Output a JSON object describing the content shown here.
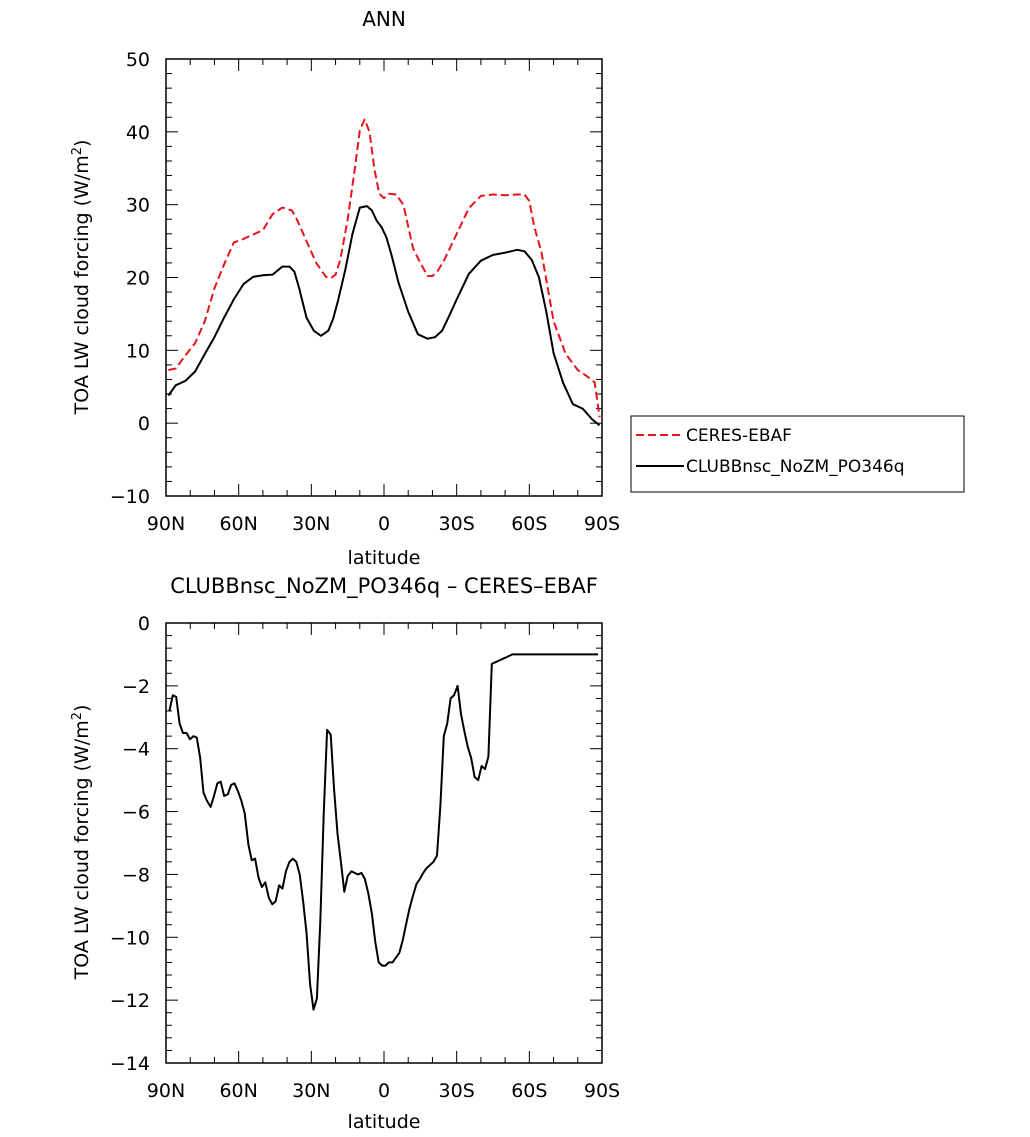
{
  "colors": {
    "observation": "#e8141b",
    "model": "#000000",
    "axis": "#000000",
    "background": "#ffffff"
  },
  "chart_data": [
    {
      "type": "line",
      "title": "ANN",
      "xlabel": "latitude",
      "ylabel": "TOA LW cloud forcing (W/m²)",
      "ylabel_main": "TOA LW cloud forcing (W/m",
      "ylabel_sup": "2",
      "ylabel_end": ")",
      "xlim": [
        90,
        -90
      ],
      "ylim": [
        -10,
        50
      ],
      "yticks": [
        -10,
        0,
        10,
        20,
        30,
        40,
        50
      ],
      "xticks": [
        {
          "value": 90,
          "label": "90N"
        },
        {
          "value": 60,
          "label": "60N"
        },
        {
          "value": 30,
          "label": "30N"
        },
        {
          "value": 0,
          "label": "0"
        },
        {
          "value": -30,
          "label": "30S"
        },
        {
          "value": -60,
          "label": "60S"
        },
        {
          "value": -90,
          "label": "90S"
        }
      ],
      "grid": false,
      "legend_position": "right",
      "series": [
        {
          "name": "CERES-EBAF",
          "style": "dashed",
          "color": "#e8141b",
          "x": [
            89,
            86,
            82,
            78,
            74,
            70,
            66,
            62,
            58,
            54,
            50,
            46,
            42,
            38,
            36,
            32,
            28,
            24,
            22,
            20,
            18,
            15,
            12,
            10,
            8,
            6,
            4,
            2,
            0,
            -2,
            -5,
            -8,
            -10,
            -12,
            -15,
            -18,
            -20,
            -22,
            -25,
            -30,
            -35,
            -40,
            -45,
            -50,
            -55,
            -58,
            -60,
            -62,
            -65,
            -70,
            -75,
            -80,
            -84,
            -87,
            -89
          ],
          "y": [
            7.3,
            7.5,
            9.3,
            11,
            14,
            18.5,
            21.8,
            24.8,
            25.3,
            25.9,
            26.5,
            28.7,
            29.6,
            29.2,
            28,
            25,
            22,
            20.1,
            19.9,
            20.4,
            22.5,
            28,
            35,
            40.2,
            41.7,
            40,
            35,
            31.5,
            30.9,
            31.5,
            31.4,
            30,
            27,
            24,
            22,
            20.2,
            20.2,
            20.8,
            22.5,
            26,
            29.5,
            31.2,
            31.4,
            31.3,
            31.4,
            31.4,
            30.5,
            27,
            23.5,
            14,
            9.5,
            7.3,
            6.4,
            5.6,
            0.8
          ]
        },
        {
          "name": "CLUBBnsc_NoZM_PO346q",
          "style": "solid",
          "color": "#000000",
          "x": [
            89,
            86,
            82,
            78,
            74,
            70,
            66,
            62,
            58,
            54,
            50,
            46,
            42,
            39,
            37,
            35,
            32,
            29,
            26,
            23,
            21,
            19,
            16,
            13,
            10,
            7,
            5,
            3,
            1,
            -1,
            -3,
            -6,
            -10,
            -14,
            -18,
            -21,
            -24,
            -27,
            -30,
            -35,
            -40,
            -45,
            -50,
            -55,
            -58,
            -61,
            -64,
            -67,
            -70,
            -74,
            -78,
            -82,
            -86,
            -89
          ],
          "y": [
            3.8,
            5.2,
            5.8,
            7.1,
            9.5,
            11.8,
            14.5,
            17,
            19.1,
            20.1,
            20.3,
            20.4,
            21.5,
            21.5,
            20.8,
            18.5,
            14.5,
            12.7,
            12,
            12.7,
            14.3,
            16.8,
            21,
            26,
            29.6,
            29.8,
            29.2,
            27.8,
            26.9,
            25.5,
            23.2,
            19.3,
            15.3,
            12.2,
            11.6,
            11.8,
            12.7,
            14.8,
            17,
            20.5,
            22.3,
            23.1,
            23.4,
            23.8,
            23.6,
            22.4,
            20,
            15.3,
            9.6,
            5.5,
            2.6,
            2,
            0.5,
            -0.3
          ]
        }
      ]
    },
    {
      "type": "line",
      "title": "CLUBBnsc_NoZM_PO346q – CERES–EBAF",
      "xlabel": "latitude",
      "ylabel": "TOA LW cloud forcing (W/m²)",
      "ylabel_main": "TOA LW cloud forcing (W/m",
      "ylabel_sup": "2",
      "ylabel_end": ")",
      "xlim": [
        90,
        -90
      ],
      "ylim": [
        -14,
        0
      ],
      "yticks": [
        -14,
        -12,
        -10,
        -8,
        -6,
        -4,
        -2,
        0
      ],
      "xticks": [
        {
          "value": 90,
          "label": "90N"
        },
        {
          "value": 60,
          "label": "60N"
        },
        {
          "value": 30,
          "label": "30N"
        },
        {
          "value": 0,
          "label": "0"
        },
        {
          "value": -30,
          "label": "30S"
        },
        {
          "value": -60,
          "label": "60S"
        },
        {
          "value": -90,
          "label": "90S"
        }
      ],
      "grid": false,
      "series": [
        {
          "name": "CLUBBnsc_NoZM_PO346q – CERES–EBAF",
          "style": "solid",
          "color": "#000000",
          "x": [
            88.6,
            87.2,
            85.8,
            84.4,
            83,
            81.5,
            80.1,
            78.7,
            77.3,
            75.9,
            74.5,
            73.1,
            71.6,
            70.2,
            68.8,
            67.4,
            66,
            64.5,
            63.1,
            61.7,
            60.3,
            58.9,
            57.5,
            56,
            54.6,
            53.2,
            51.8,
            50.4,
            49,
            47.5,
            46.1,
            44.7,
            43.3,
            41.9,
            40.5,
            39,
            37.6,
            36.2,
            34.8,
            33.4,
            32,
            30.5,
            29.1,
            27.7,
            26.3,
            24.9,
            23.5,
            22,
            20.6,
            19.2,
            17.8,
            16.4,
            15,
            13.5,
            12.1,
            10.7,
            9.3,
            7.9,
            6.5,
            5,
            3.6,
            2.2,
            0.8,
            -0.6,
            -2,
            -3.5,
            -4.9,
            -6.3,
            -7.7,
            -9.1,
            -10.5,
            -11.9,
            -13.4,
            -14.8,
            -16.2,
            -17.6,
            -19,
            -20.4,
            -21.9,
            -23.3,
            -24.7,
            -26.1,
            -27.5,
            -28.9,
            -30.4,
            -31.8,
            -33.2,
            -34.6,
            -36,
            -37.4,
            -38.9,
            -40.3,
            -41.7,
            -43.1,
            -44.5,
            -45.9,
            -47.4,
            -48.8,
            -50.2,
            -51.6,
            -53,
            -54.4,
            -55.9,
            -57.3,
            -58.7,
            -60.1,
            -61.5,
            -62.9,
            -64.4,
            -65.8,
            -67.2,
            -68.6,
            -70,
            -71.4,
            -72.9,
            -74.3,
            -75.7,
            -77.1,
            -78.5,
            -79.9,
            -81.4,
            -82.8,
            -84.2,
            -85.6,
            -87,
            -88.4
          ],
          "y": [
            -2.8,
            -2.3,
            -2.35,
            -3.2,
            -3.5,
            -3.5,
            -3.7,
            -3.6,
            -3.65,
            -4.3,
            -5.4,
            -5.65,
            -5.85,
            -5.5,
            -5.1,
            -5.05,
            -5.5,
            -5.45,
            -5.15,
            -5.1,
            -5.35,
            -5.65,
            -6.05,
            -7.05,
            -7.55,
            -7.5,
            -8.1,
            -8.4,
            -8.25,
            -8.75,
            -8.95,
            -8.85,
            -8.35,
            -8.45,
            -7.9,
            -7.6,
            -7.5,
            -7.6,
            -8,
            -8.85,
            -9.85,
            -11.5,
            -12.3,
            -11.95,
            -9.5,
            -6.1,
            -3.4,
            -3.55,
            -5.3,
            -6.7,
            -7.6,
            -8.55,
            -8.05,
            -7.9,
            -7.95,
            -8,
            -7.95,
            -8.15,
            -8.6,
            -9.25,
            -10.15,
            -10.8,
            -10.9,
            -10.9,
            -10.8,
            -10.8,
            -10.65,
            -10.5,
            -10.1,
            -9.6,
            -9.1,
            -8.7,
            -8.3,
            -8.15,
            -7.95,
            -7.8,
            -7.7,
            -7.6,
            -7.4,
            -5.8,
            -3.6,
            -3.2,
            -2.4,
            -2.3,
            -2,
            -2.9,
            -3.45,
            -3.95,
            -4.3,
            -4.9,
            -5,
            -4.55,
            -4.65,
            -4.25,
            -1.3,
            -1.25,
            -1.2,
            -1.15,
            -1.1,
            -1.05,
            -1,
            -1,
            -1,
            -1,
            -1,
            -1,
            -1,
            -1,
            -1,
            -1,
            -1,
            -1,
            -1,
            -1,
            -1,
            -1,
            -1,
            -1,
            -1,
            -1,
            -1,
            -1,
            -1,
            -1,
            -1,
            -1
          ]
        }
      ]
    }
  ]
}
